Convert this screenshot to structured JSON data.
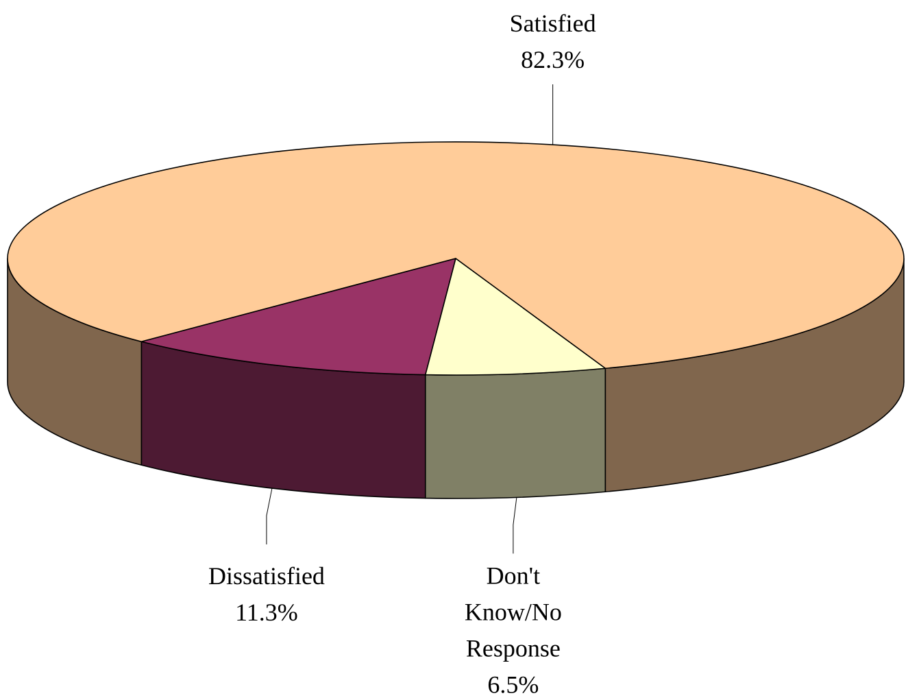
{
  "chart_data": {
    "type": "pie",
    "style": "3d",
    "slices": [
      {
        "name": "Satisfied",
        "value": 82.3,
        "label_lines": [
          "Satisfied",
          "82.3%"
        ],
        "top_color": "#FFCC99",
        "side_color": "#80664D"
      },
      {
        "name": "Dissatisfied",
        "value": 11.3,
        "label_lines": [
          "Dissatisfied",
          "11.3%"
        ],
        "top_color": "#993366",
        "side_color": "#4D1A33"
      },
      {
        "name": "Don't Know/No Response",
        "value": 6.5,
        "label_lines": [
          "Don't",
          "Know/No",
          "Response",
          "6.5%"
        ],
        "top_color": "#FFFFCC",
        "side_color": "#808066"
      }
    ]
  }
}
